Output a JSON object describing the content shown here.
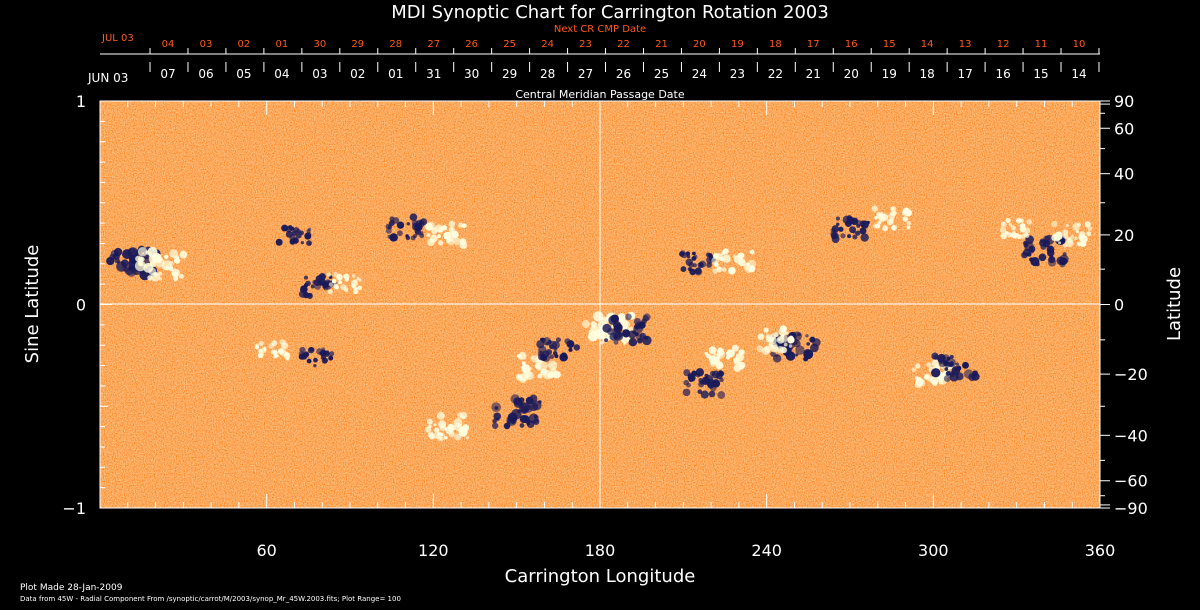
{
  "chart_data": {
    "type": "heatmap",
    "title": "MDI Synoptic Chart for Carrington Rotation 2003",
    "xlabel": "Carrington Longitude",
    "ylabel_left": "Sine Latitude",
    "ylabel_right": "Latitude",
    "xlim": [
      0,
      360
    ],
    "ylim": [
      -1,
      1
    ],
    "x_ticks": [
      "60",
      "120",
      "180",
      "240",
      "300",
      "360"
    ],
    "y_ticks_left": [
      "1",
      "0",
      "−1"
    ],
    "y_ticks_right": [
      "90",
      "60",
      "40",
      "20",
      "0",
      "−20",
      "−40",
      "−60",
      "−90"
    ],
    "date_axis_title": "Central Meridian Passage Date",
    "date_axis_month": "JUN 03",
    "date_axis_ticks": [
      "07",
      "06",
      "05",
      "04",
      "03",
      "02",
      "01",
      "31",
      "30",
      "29",
      "28",
      "27",
      "26",
      "25",
      "24",
      "23",
      "22",
      "21",
      "20",
      "19",
      "18",
      "17",
      "16",
      "15",
      "14"
    ],
    "next_cr_title": "Next CR CMP Date",
    "next_cr_month": "JUL 03",
    "next_cr_ticks": [
      "04",
      "03",
      "02",
      "01",
      "30",
      "29",
      "28",
      "27",
      "26",
      "25",
      "24",
      "23",
      "22",
      "21",
      "20",
      "19",
      "18",
      "17",
      "16",
      "15",
      "14",
      "13",
      "12",
      "11",
      "10"
    ],
    "footer_plot_made": "Plot Made 28-Jan-2009",
    "footer_data": "Data from 45W - Radial Component From /synoptic/carrot/M/2003/synop_Mr_45W.2003.fits; Plot Range=  100",
    "colors": {
      "background": "#ff5a1e",
      "positive": "#ffffe0",
      "negative": "#1a1a5a",
      "next_cr": "#ff5a1e"
    },
    "active_regions": [
      {
        "lon": 12,
        "lat": 12,
        "polarity": "negative",
        "strength": 1.0
      },
      {
        "lon": 22,
        "lat": 11,
        "polarity": "positive",
        "strength": 1.0
      },
      {
        "lon": 78,
        "lat": 5,
        "polarity": "negative",
        "strength": 0.6
      },
      {
        "lon": 88,
        "lat": 6,
        "polarity": "positive",
        "strength": 0.5
      },
      {
        "lon": 110,
        "lat": 22,
        "polarity": "negative",
        "strength": 0.7
      },
      {
        "lon": 125,
        "lat": 20,
        "polarity": "positive",
        "strength": 0.7
      },
      {
        "lon": 70,
        "lat": 20,
        "polarity": "negative",
        "strength": 0.5
      },
      {
        "lon": 62,
        "lat": -13,
        "polarity": "positive",
        "strength": 0.5
      },
      {
        "lon": 78,
        "lat": -15,
        "polarity": "negative",
        "strength": 0.5
      },
      {
        "lon": 150,
        "lat": -32,
        "polarity": "negative",
        "strength": 1.0
      },
      {
        "lon": 125,
        "lat": -37,
        "polarity": "positive",
        "strength": 0.8
      },
      {
        "lon": 158,
        "lat": -18,
        "polarity": "positive",
        "strength": 0.8
      },
      {
        "lon": 165,
        "lat": -12,
        "polarity": "negative",
        "strength": 0.7
      },
      {
        "lon": 183,
        "lat": -7,
        "polarity": "positive",
        "strength": 1.0
      },
      {
        "lon": 190,
        "lat": -7,
        "polarity": "negative",
        "strength": 0.9
      },
      {
        "lon": 215,
        "lat": 12,
        "polarity": "negative",
        "strength": 0.6
      },
      {
        "lon": 228,
        "lat": 12,
        "polarity": "positive",
        "strength": 0.7
      },
      {
        "lon": 225,
        "lat": -15,
        "polarity": "positive",
        "strength": 0.7
      },
      {
        "lon": 218,
        "lat": -23,
        "polarity": "negative",
        "strength": 0.8
      },
      {
        "lon": 250,
        "lat": -12,
        "polarity": "negative",
        "strength": 0.9
      },
      {
        "lon": 243,
        "lat": -10,
        "polarity": "positive",
        "strength": 0.7
      },
      {
        "lon": 270,
        "lat": 22,
        "polarity": "negative",
        "strength": 0.7
      },
      {
        "lon": 285,
        "lat": 25,
        "polarity": "positive",
        "strength": 0.6
      },
      {
        "lon": 300,
        "lat": -20,
        "polarity": "positive",
        "strength": 0.8
      },
      {
        "lon": 308,
        "lat": -18,
        "polarity": "negative",
        "strength": 0.8
      },
      {
        "lon": 340,
        "lat": 15,
        "polarity": "negative",
        "strength": 0.9
      },
      {
        "lon": 350,
        "lat": 20,
        "polarity": "positive",
        "strength": 0.7
      },
      {
        "lon": 330,
        "lat": 22,
        "polarity": "positive",
        "strength": 0.5
      }
    ]
  }
}
